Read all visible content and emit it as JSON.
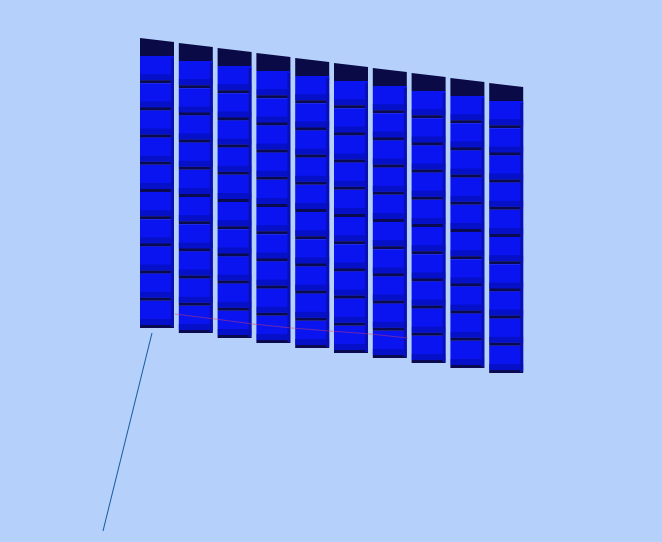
{
  "scene": {
    "background_color": "#b4d0fb",
    "grid": {
      "columns": 10,
      "rows": 10,
      "top_face_row_present": true
    },
    "colors": {
      "cube_front": "#0a14f0",
      "cube_front_shadow": "#0610c8",
      "cube_side": "#0a0fb4",
      "cube_top": "#0a0a46",
      "cube_separator": "#0a0a50",
      "axis_line": "#1a5aa0",
      "accent_line": "#c83c6e"
    },
    "axis": {
      "visible": true
    }
  }
}
